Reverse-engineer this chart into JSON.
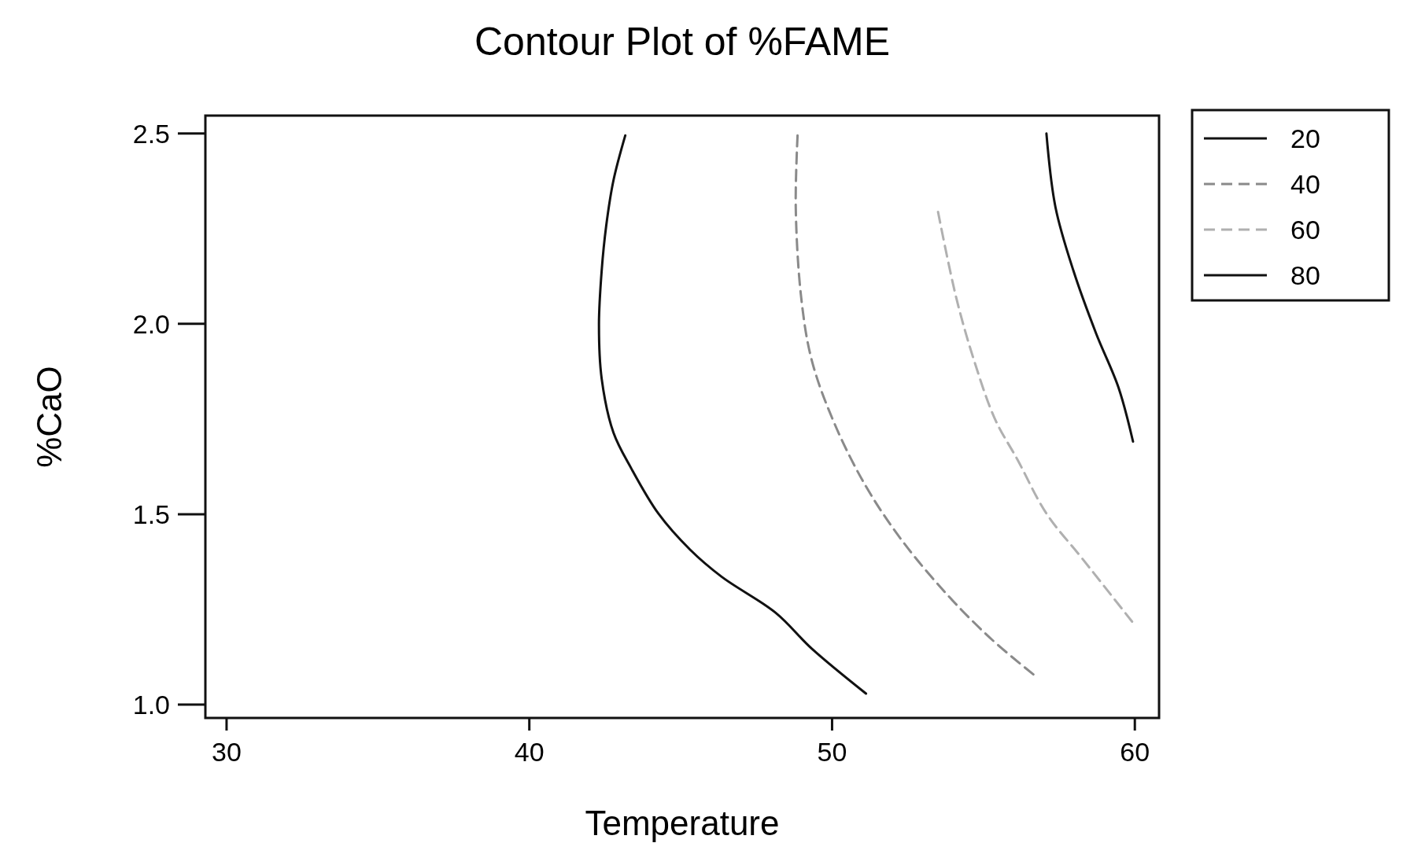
{
  "chart_data": {
    "type": "line",
    "title": "Contour Plot of %FAME",
    "xlabel": "Temperature",
    "ylabel": "%CaO",
    "xlim": [
      29.3,
      60.8
    ],
    "xticks": [
      30,
      40,
      50,
      60
    ],
    "ylim": [
      0.965,
      2.547
    ],
    "yticks": [
      {
        "value": 2.5,
        "label": "2.5"
      },
      {
        "value": 2.0,
        "label": "2.0"
      },
      {
        "value": 1.5,
        "label": "1.5"
      },
      {
        "value": 1.0,
        "label": "1.0"
      }
    ],
    "legend": "top right",
    "marker": "none",
    "grid": false,
    "series": [
      {
        "name": "20",
        "color": "#111111",
        "line_style": "solid",
        "x": [
          43.17,
          42.78,
          42.54,
          42.39,
          42.3,
          42.39,
          42.78,
          43.37,
          44.27,
          45.31,
          46.35,
          48.14,
          49.33,
          51.12
        ],
        "values": [
          2.495,
          2.377,
          2.258,
          2.14,
          1.998,
          1.856,
          1.714,
          1.62,
          1.501,
          1.407,
          1.336,
          1.241,
          1.147,
          1.029
        ]
      },
      {
        "name": "40",
        "color": "#8a8a8a",
        "line_style": "dashed",
        "x": [
          48.86,
          48.8,
          48.98,
          49.33,
          50.08,
          51.12,
          52.31,
          53.8,
          55.29,
          56.78
        ],
        "values": [
          2.495,
          2.306,
          2.069,
          1.904,
          1.738,
          1.573,
          1.431,
          1.289,
          1.17,
          1.071
        ]
      },
      {
        "name": "60",
        "color": "#b0b0b0",
        "line_style": "dashed",
        "x": [
          53.5,
          54.1,
          54.69,
          55.38,
          56.12,
          57.08,
          58.27,
          59.91
        ],
        "values": [
          2.294,
          2.069,
          1.904,
          1.75,
          1.644,
          1.502,
          1.383,
          1.218
        ]
      },
      {
        "name": "80",
        "color": "#111111",
        "line_style": "solid",
        "x": [
          57.08,
          57.38,
          57.97,
          58.72,
          59.46,
          59.94
        ],
        "values": [
          2.5,
          2.306,
          2.14,
          1.975,
          1.833,
          1.691
        ]
      }
    ]
  }
}
